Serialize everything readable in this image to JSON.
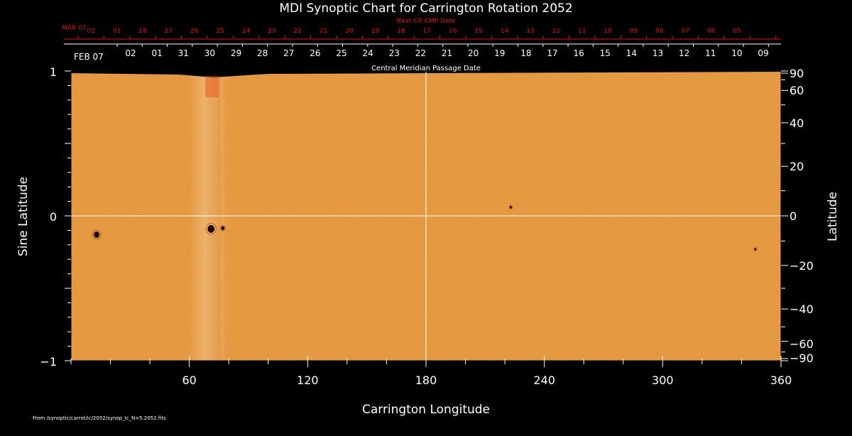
{
  "chart_data": {
    "type": "heatmap",
    "title": "MDI Synoptic Chart for Carrington Rotation 2052",
    "xlabel": "Carrington Longitude",
    "ylabel_left": "Sine Latitude",
    "ylabel_right": "Latitude",
    "xlim": [
      0,
      360
    ],
    "ylim": [
      -1,
      1
    ],
    "x_ticks": [
      60,
      120,
      180,
      240,
      300,
      360
    ],
    "left_ticks": [
      {
        "v": 1,
        "label": "1"
      },
      {
        "v": 0,
        "label": "0"
      },
      {
        "v": -1,
        "label": "−1"
      }
    ],
    "right_ticks": [
      {
        "deg": 90,
        "label": "90"
      },
      {
        "deg": 60,
        "label": "60"
      },
      {
        "deg": 40,
        "label": "40"
      },
      {
        "deg": 20,
        "label": "20"
      },
      {
        "deg": 0,
        "label": "0"
      },
      {
        "deg": -20,
        "label": "−20"
      },
      {
        "deg": -40,
        "label": "−40"
      },
      {
        "deg": -60,
        "label": "−60"
      },
      {
        "deg": -90,
        "label": "−90"
      }
    ],
    "gridlines": {
      "longitude": 180,
      "sine_latitude": 0
    },
    "next_cr_axis": {
      "title": "Next CR CMP Date",
      "first_label": "MAR 07",
      "labels": [
        "02",
        "01",
        "28",
        "27",
        "26",
        "25",
        "24",
        "23",
        "22",
        "21",
        "20",
        "19",
        "18",
        "17",
        "16",
        "15",
        "14",
        "13",
        "12",
        "11",
        "10",
        "09",
        "08",
        "07",
        "06",
        "05"
      ]
    },
    "cmp_axis": {
      "title": "Central Meridian Passage Date",
      "first_label": "FEB 07",
      "labels": [
        "02",
        "01",
        "31",
        "30",
        "29",
        "28",
        "27",
        "26",
        "25",
        "24",
        "23",
        "22",
        "21",
        "20",
        "19",
        "18",
        "17",
        "16",
        "15",
        "14",
        "13",
        "12",
        "11",
        "10",
        "09"
      ]
    },
    "spots": [
      {
        "lon": 13,
        "sinlat": -0.13,
        "size": 1.0
      },
      {
        "lon": 71,
        "sinlat": -0.09,
        "size": 1.2
      },
      {
        "lon": 77,
        "sinlat": -0.085,
        "size": 0.6
      },
      {
        "lon": 223,
        "sinlat": 0.06,
        "size": 0.4
      },
      {
        "lon": 347,
        "sinlat": -0.23,
        "size": 0.35
      }
    ],
    "colors": {
      "background": "#000000",
      "map": "#f3a04c",
      "axis_red": "#e01010",
      "grid": "#ffffff"
    }
  },
  "footer": "From /synoptic/carrot/ic/2052/synop_Ic_N=5.2052.fits"
}
